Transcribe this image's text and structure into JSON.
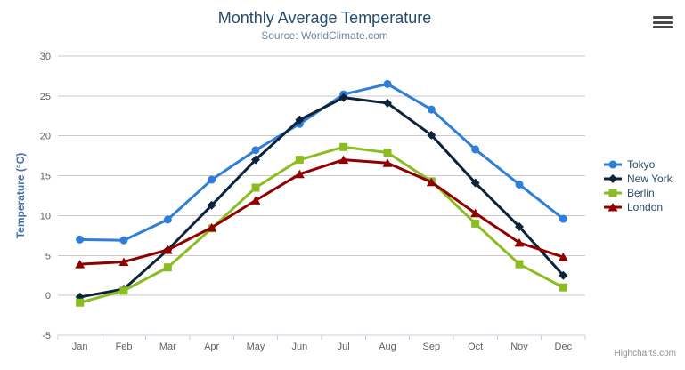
{
  "header": {
    "title": "Monthly Average Temperature",
    "subtitle": "Source: WorldClimate.com"
  },
  "credits": {
    "label": "Highcharts.com"
  },
  "menu_button": {
    "icon": "hamburger-icon"
  },
  "styles": {
    "title_color": "#274b6d",
    "subtitle_color": "#6d869f",
    "axis_label_color": "#606060",
    "y_title_color": "#4572a7",
    "grid_color": "#c9c9c9",
    "axis_line_color": "#c0d0e0",
    "legend_text_color": "#274b6d",
    "credits_color": "#909090",
    "menu_icon_color": "#4a4a4a"
  },
  "chart_data": {
    "type": "line",
    "title": "Monthly Average Temperature",
    "subtitle": "Source: WorldClimate.com",
    "categories": [
      "Jan",
      "Feb",
      "Mar",
      "Apr",
      "May",
      "Jun",
      "Jul",
      "Aug",
      "Sep",
      "Oct",
      "Nov",
      "Dec"
    ],
    "xlabel": "",
    "ylabel": "Temperature (°C)",
    "ylim": [
      -5,
      30
    ],
    "yticks": [
      30,
      25,
      20,
      15,
      10,
      5,
      0,
      -5
    ],
    "grid": true,
    "legend_position": "right",
    "series": [
      {
        "name": "Tokyo",
        "color": "#2f7ed8",
        "marker": "circle",
        "values": [
          7.0,
          6.9,
          9.5,
          14.5,
          18.2,
          21.5,
          25.2,
          26.5,
          23.3,
          18.3,
          13.9,
          9.6
        ]
      },
      {
        "name": "New York",
        "color": "#0d233a",
        "marker": "diamond",
        "values": [
          -0.2,
          0.8,
          5.7,
          11.3,
          17.0,
          22.0,
          24.8,
          24.1,
          20.1,
          14.1,
          8.6,
          2.5
        ]
      },
      {
        "name": "Berlin",
        "color": "#8bbc21",
        "marker": "square",
        "values": [
          -0.9,
          0.6,
          3.5,
          8.4,
          13.5,
          17.0,
          18.6,
          17.9,
          14.3,
          9.0,
          3.9,
          1.0
        ]
      },
      {
        "name": "London",
        "color": "#910000",
        "marker": "triangle",
        "values": [
          3.9,
          4.2,
          5.7,
          8.5,
          11.9,
          15.2,
          17.0,
          16.6,
          14.2,
          10.3,
          6.6,
          4.8
        ]
      }
    ]
  }
}
